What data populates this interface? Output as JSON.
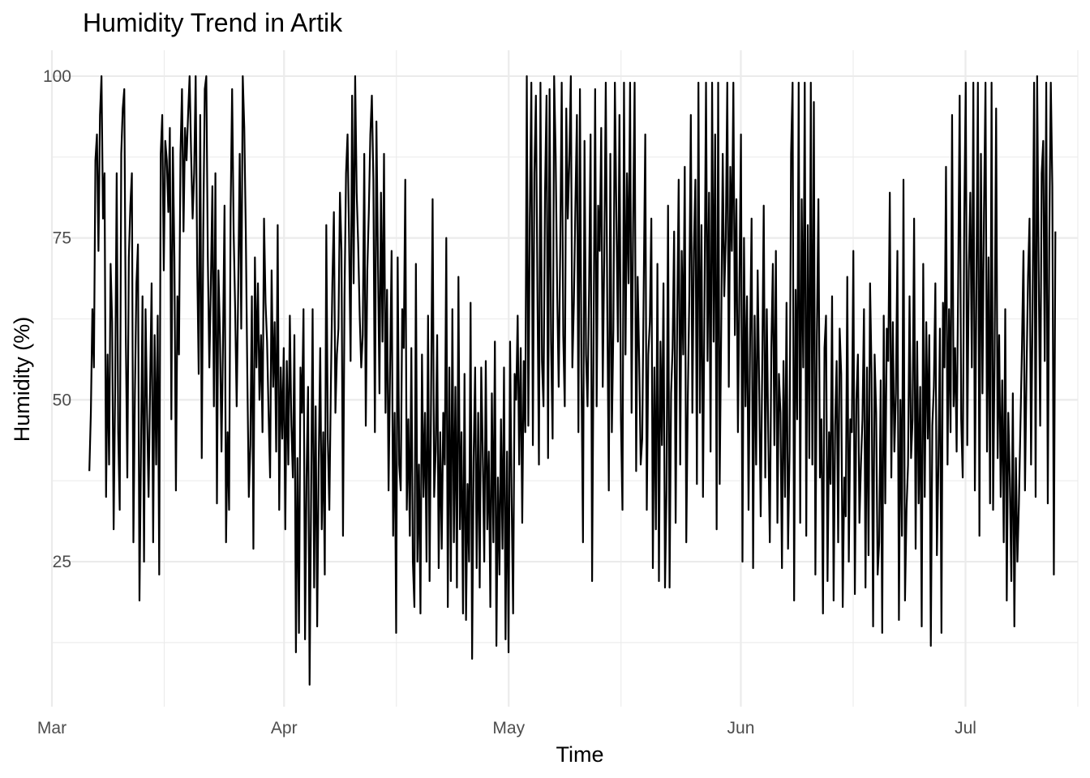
{
  "chart_data": {
    "type": "line",
    "title": "Humidity Trend in Artik",
    "xlabel": "Time",
    "ylabel": "Humidity (%)",
    "grid": true,
    "legend": "none",
    "line_color": "#000000",
    "xlim": [
      "2023-03-01",
      "2023-07-16"
    ],
    "ylim": [
      2.6,
      104
    ],
    "x_ticks": [
      {
        "date": "2023-03-01",
        "label": "Mar"
      },
      {
        "date": "2023-04-01",
        "label": "Apr"
      },
      {
        "date": "2023-05-01",
        "label": "May"
      },
      {
        "date": "2023-06-01",
        "label": "Jun"
      },
      {
        "date": "2023-07-01",
        "label": "Jul"
      }
    ],
    "x_minor_ticks": [
      "2023-03-16",
      "2023-04-16",
      "2023-05-16",
      "2023-06-16",
      "2023-07-16"
    ],
    "y_ticks": [
      25,
      50,
      75,
      100
    ],
    "y_minor_ticks": [
      12.5,
      37.5,
      62.5,
      87.5
    ],
    "series": [
      {
        "name": "",
        "x_start": "2023-03-06",
        "x_end": "2023-07-13",
        "values": [
          39,
          48,
          64,
          55,
          87,
          91,
          73,
          94,
          100,
          78,
          85,
          35,
          57,
          40,
          71,
          62,
          30,
          52,
          85,
          45,
          33,
          88,
          95,
          98,
          60,
          38,
          72,
          80,
          85,
          28,
          51,
          68,
          74,
          19,
          42,
          66,
          25,
          64,
          48,
          35,
          52,
          68,
          28,
          60,
          40,
          63,
          23,
          88,
          94,
          70,
          90,
          87,
          79,
          92,
          47,
          89,
          72,
          36,
          66,
          57,
          88,
          98,
          76,
          92,
          87,
          94,
          100,
          88,
          78,
          85,
          100,
          71,
          54,
          94,
          41,
          76,
          98,
          100,
          72,
          55,
          68,
          83,
          49,
          85,
          34,
          70,
          60,
          42,
          59,
          80,
          28,
          45,
          33,
          79,
          98,
          76,
          64,
          49,
          67,
          88,
          61,
          100,
          92,
          76,
          54,
          35,
          43,
          66,
          27,
          72,
          55,
          68,
          50,
          60,
          45,
          78,
          65,
          59,
          48,
          38,
          70,
          52,
          62,
          42,
          77,
          33,
          55,
          44,
          58,
          30,
          56,
          40,
          63,
          46,
          38,
          60,
          11,
          41,
          14,
          55,
          48,
          64,
          13,
          38,
          52,
          6,
          35,
          64,
          21,
          49,
          15,
          40,
          58,
          30,
          45,
          23,
          77,
          44,
          33,
          52,
          68,
          79,
          48,
          57,
          61,
          82,
          73,
          29,
          66,
          85,
          91,
          75,
          56,
          97,
          68,
          100,
          82,
          74,
          63,
          55,
          60,
          88,
          46,
          70,
          79,
          91,
          97,
          84,
          45,
          93,
          72,
          51,
          82,
          59,
          88,
          48,
          67,
          36,
          55,
          73,
          29,
          48,
          14,
          72,
          40,
          36,
          64,
          58,
          84,
          33,
          47,
          29,
          58,
          25,
          18,
          71,
          25,
          40,
          17,
          57,
          35,
          48,
          25,
          63,
          22,
          51,
          81,
          35,
          42,
          60,
          24,
          45,
          27,
          48,
          40,
          75,
          18,
          55,
          22,
          64,
          28,
          52,
          21,
          69,
          30,
          45,
          17,
          54,
          16,
          37,
          25,
          65,
          10,
          41,
          55,
          24,
          48,
          21,
          55,
          42,
          25,
          56,
          30,
          42,
          18,
          51,
          28,
          59,
          12,
          38,
          23,
          47,
          27,
          55,
          13,
          42,
          11,
          59,
          35,
          17,
          54,
          50,
          63,
          40,
          58,
          31,
          56,
          45,
          100,
          46,
          78,
          99,
          43,
          85,
          97,
          67,
          40,
          99,
          56,
          49,
          82,
          97,
          41,
          98,
          59,
          44,
          100,
          88,
          67,
          52,
          73,
          99,
          60,
          49,
          95,
          78,
          87,
          100,
          55,
          65,
          80,
          94,
          45,
          98,
          54,
          28,
          90,
          57,
          49,
          67,
          91,
          22,
          60,
          98,
          49,
          80,
          73,
          92,
          52,
          72,
          99,
          64,
          36,
          88,
          45,
          61,
          99,
          78,
          59,
          94,
          47,
          33,
          99,
          57,
          85,
          68,
          99,
          48,
          77,
          99,
          39,
          69,
          56,
          40,
          44,
          68,
          91,
          33,
          57,
          62,
          78,
          24,
          55,
          30,
          71,
          22,
          59,
          43,
          68,
          21,
          36,
          80,
          21,
          51,
          58,
          76,
          31,
          62,
          84,
          40,
          73,
          57,
          86,
          28,
          50,
          66,
          94,
          48,
          73,
          84,
          37,
          99,
          48,
          77,
          35,
          65,
          99,
          56,
          82,
          42,
          99,
          59,
          91,
          30,
          99,
          37,
          61,
          88,
          66,
          75,
          99,
          52,
          86,
          73,
          99,
          60,
          81,
          45,
          68,
          91,
          25,
          75,
          49,
          66,
          33,
          59,
          78,
          24,
          63,
          40,
          70,
          52,
          32,
          55,
          80,
          38,
          64,
          44,
          28,
          58,
          71,
          43,
          73,
          31,
          54,
          48,
          24,
          56,
          35,
          65,
          27,
          42,
          88,
          99,
          19,
          67,
          47,
          99,
          31,
          81,
          55,
          99,
          29,
          77,
          41,
          99,
          40,
          96,
          23,
          60,
          81,
          38,
          47,
          17,
          58,
          63,
          22,
          45,
          37,
          66,
          19,
          46,
          56,
          28,
          61,
          54,
          18,
          38,
          32,
          69,
          25,
          47,
          45,
          73,
          20,
          50,
          57,
          31,
          40,
          47,
          64,
          21,
          55,
          26,
          68,
          54,
          15,
          57,
          48,
          23,
          28,
          53,
          14,
          63,
          34,
          61,
          56,
          82,
          38,
          62,
          42,
          51,
          73,
          16,
          50,
          29,
          84,
          19,
          33,
          40,
          66,
          41,
          47,
          78,
          27,
          59,
          34,
          52,
          15,
          71,
          35,
          62,
          44,
          60,
          12,
          46,
          52,
          68,
          26,
          40,
          61,
          14,
          65,
          55,
          86,
          40,
          64,
          45,
          94,
          49,
          58,
          42,
          68,
          97,
          47,
          38,
          78,
          99,
          43,
          70,
          82,
          55,
          99,
          36,
          67,
          99,
          29,
          88,
          51,
          79,
          99,
          42,
          72,
          34,
          99,
          33,
          57,
          95,
          41,
          60,
          35,
          53,
          28,
          64,
          19,
          48,
          38,
          22,
          51,
          15,
          41,
          25,
          34,
          46,
          58,
          73,
          36,
          54,
          69,
          78,
          40,
          64,
          99,
          35,
          100,
          70,
          46,
          85,
          90,
          56,
          99,
          34,
          75,
          99,
          83,
          23,
          76
        ]
      }
    ]
  }
}
